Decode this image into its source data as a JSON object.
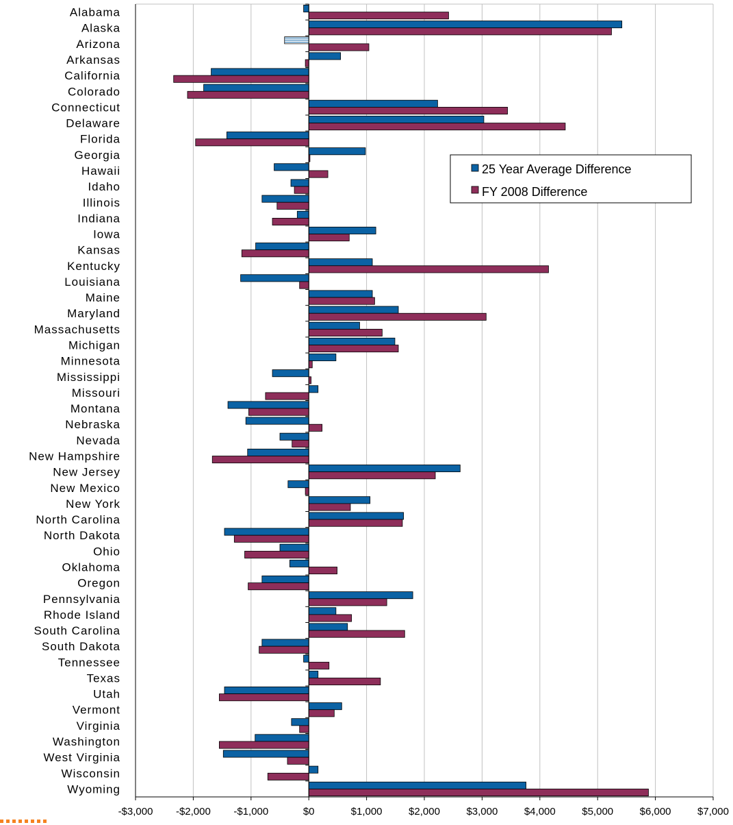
{
  "chart_data": {
    "type": "bar",
    "orientation": "horizontal",
    "title": "",
    "xlabel": "",
    "ylabel": "",
    "xlim": [
      -3000,
      7000
    ],
    "x_ticks": [
      -3000,
      -2000,
      -1000,
      0,
      1000,
      2000,
      3000,
      4000,
      5000,
      6000,
      7000
    ],
    "x_tick_labels": [
      "-$3,000",
      "-$2,000",
      "-$1,000",
      "$0",
      "$1,000",
      "$2,000",
      "$3,000",
      "$4,000",
      "$5,000",
      "$6,000",
      "$7,000"
    ],
    "grid": "vertical",
    "legend_position": "upper-right",
    "categories": [
      "Alabama",
      "Alaska",
      "Arizona",
      "Arkansas",
      "California",
      "Colorado",
      "Connecticut",
      "Delaware",
      "Florida",
      "Georgia",
      "Hawaii",
      "Idaho",
      "Illinois",
      "Indiana",
      "Iowa",
      "Kansas",
      "Kentucky",
      "Louisiana",
      "Maine",
      "Maryland",
      "Massachusetts",
      "Michigan",
      "Minnesota",
      "Mississippi",
      "Missouri",
      "Montana",
      "Nebraska",
      "Nevada",
      "New Hampshire",
      "New Jersey",
      "New Mexico",
      "New York",
      "North Carolina",
      "North Dakota",
      "Ohio",
      "Oklahoma",
      "Oregon",
      "Pennsylvania",
      "Rhode Island",
      "South Carolina",
      "South Dakota",
      "Tennessee",
      "Texas",
      "Utah",
      "Vermont",
      "Virginia",
      "Washington",
      "West Virginia",
      "Wisconsin",
      "Wyoming"
    ],
    "series": [
      {
        "name": "25 Year Average Difference",
        "color": "#0b62a4",
        "values": [
          -90,
          5420,
          -420,
          550,
          -1690,
          -1820,
          2230,
          3030,
          -1420,
          980,
          -600,
          -310,
          -810,
          -200,
          1160,
          -920,
          1100,
          -1180,
          1100,
          1550,
          880,
          1490,
          470,
          -630,
          160,
          -1400,
          -1090,
          -500,
          -1060,
          2620,
          -360,
          1060,
          1640,
          -1460,
          -500,
          -330,
          -810,
          1800,
          470,
          670,
          -810,
          -90,
          160,
          -1460,
          570,
          -300,
          -930,
          -1480,
          160,
          3760
        ],
        "hatched_index": 2
      },
      {
        "name": "FY 2008 Difference",
        "color": "#8e2e5a",
        "values": [
          2420,
          5240,
          1040,
          -60,
          -2340,
          -2100,
          3440,
          4440,
          -1960,
          20,
          330,
          -250,
          -550,
          -630,
          700,
          -1160,
          4150,
          -160,
          1140,
          3070,
          1270,
          1550,
          60,
          40,
          -750,
          -1040,
          230,
          -290,
          -1670,
          2190,
          -60,
          720,
          1620,
          -1290,
          -1110,
          490,
          -1050,
          1350,
          740,
          1660,
          -860,
          350,
          1240,
          -1550,
          440,
          -160,
          -1550,
          -370,
          -710,
          5880
        ]
      }
    ]
  }
}
